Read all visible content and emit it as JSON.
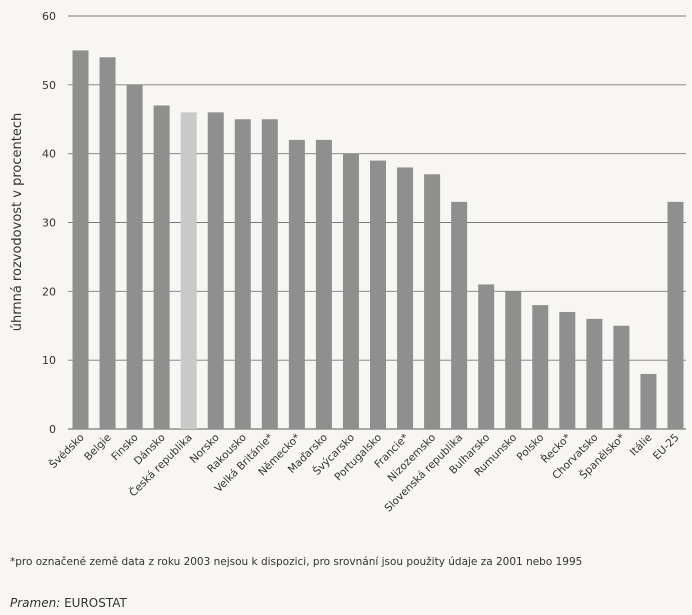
{
  "chart_data": {
    "type": "bar",
    "ylabel": "úhrnná rozvodovost v procentech",
    "ylim": [
      0,
      60
    ],
    "yticks": [
      0,
      10,
      20,
      30,
      40,
      50,
      60
    ],
    "grid": true,
    "categories": [
      "Švédsko",
      "Belgie",
      "Finsko",
      "Dánsko",
      "Česká republika",
      "Norsko",
      "Rakousko",
      "Velká Británie*",
      "Německo*",
      "Maďarsko",
      "Švýcarsko",
      "Portugalsko",
      "Francie*",
      "Nizozemsko",
      "Slovenská republika",
      "Bulharsko",
      "Rumunsko",
      "Polsko",
      "Řecko*",
      "Chorvatsko",
      "Španělsko*",
      "Itálie",
      "EU-25"
    ],
    "values": [
      55,
      54,
      50,
      47,
      46,
      46,
      45,
      45,
      42,
      42,
      40,
      39,
      38,
      37,
      33,
      21,
      20,
      18,
      17,
      16,
      15,
      8,
      33
    ],
    "highlight_category": "Česká republika",
    "colors": {
      "bar": "#8f8f8f",
      "highlight": "#c9c9c9",
      "grid": "#7a7a7a"
    }
  },
  "footnote": "*pro označené země data z roku 2003 nejsou k dispozici, pro srovnání jsou použity údaje za 2001 nebo 1995",
  "source": {
    "label": "Pramen:",
    "value": "EUROSTAT"
  }
}
